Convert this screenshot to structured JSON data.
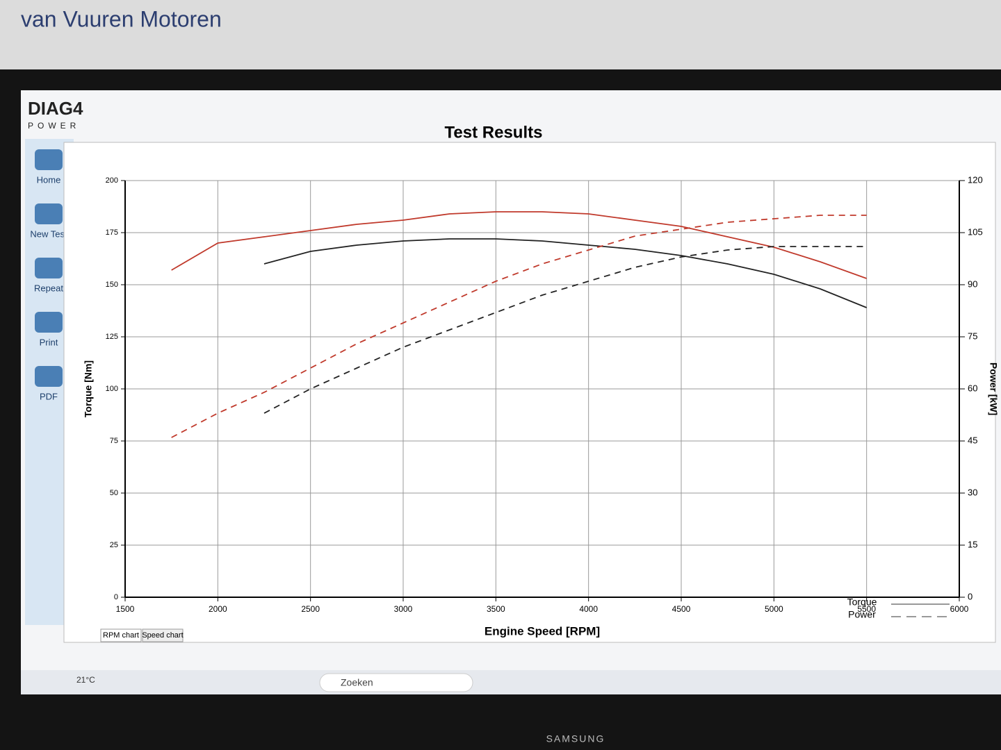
{
  "watermark": "van Vuuren Motoren",
  "app": {
    "logo": "DIAG4",
    "logo_sub": "POWER",
    "sidebar": [
      "Home",
      "New Test",
      "Repeat",
      "Print",
      "PDF"
    ],
    "tabs": [
      "RPM chart",
      "Speed chart"
    ]
  },
  "taskbar": {
    "weather": "21°C",
    "search": "Zoeken"
  },
  "brand": "SAMSUNG",
  "chart_data": {
    "type": "line",
    "title": "Test Results",
    "x_label": "Engine Speed [RPM]",
    "y_label": "Torque [Nm]",
    "y2_label": "Power [kW]",
    "x": [
      1750,
      2000,
      2250,
      2500,
      2750,
      3000,
      3250,
      3500,
      3750,
      4000,
      4250,
      4500,
      4750,
      5000,
      5250,
      5500
    ],
    "series": [
      {
        "color": "#c0392b",
        "dash": false,
        "values": [
          157,
          170,
          173,
          176,
          179,
          181,
          184,
          185,
          185,
          184,
          181,
          178,
          173,
          168,
          161,
          153
        ]
      },
      {
        "color": "#222222",
        "dash": false,
        "values": [
          null,
          null,
          160,
          166,
          169,
          171,
          172,
          172,
          171,
          169,
          167,
          164,
          160,
          155,
          148,
          139
        ]
      },
      {
        "color": "#c0392b",
        "dash": true,
        "axis": "y2",
        "values": [
          46,
          53,
          59,
          66,
          73,
          79,
          85,
          91,
          96,
          100,
          104,
          106,
          108,
          109,
          110,
          110
        ]
      },
      {
        "color": "#222222",
        "dash": true,
        "axis": "y2",
        "values": [
          null,
          null,
          53,
          60,
          66,
          72,
          77,
          82,
          87,
          91,
          95,
          98,
          100,
          101,
          101,
          101
        ]
      }
    ],
    "legend": [
      {
        "label": "Torque",
        "dash": false
      },
      {
        "label": "Power",
        "dash": true
      }
    ],
    "xlim": [
      1500,
      6000
    ],
    "xticks": [
      1500,
      2000,
      2500,
      3000,
      3500,
      4000,
      4500,
      5000,
      5500,
      6000
    ],
    "ylim": [
      0,
      200
    ],
    "yticks": [
      0,
      25,
      50,
      75,
      100,
      125,
      150,
      175,
      200
    ],
    "y2lim": [
      0,
      120
    ],
    "y2ticks": [
      0,
      15,
      30,
      45,
      60,
      75,
      90,
      105,
      120
    ],
    "grid": true
  }
}
